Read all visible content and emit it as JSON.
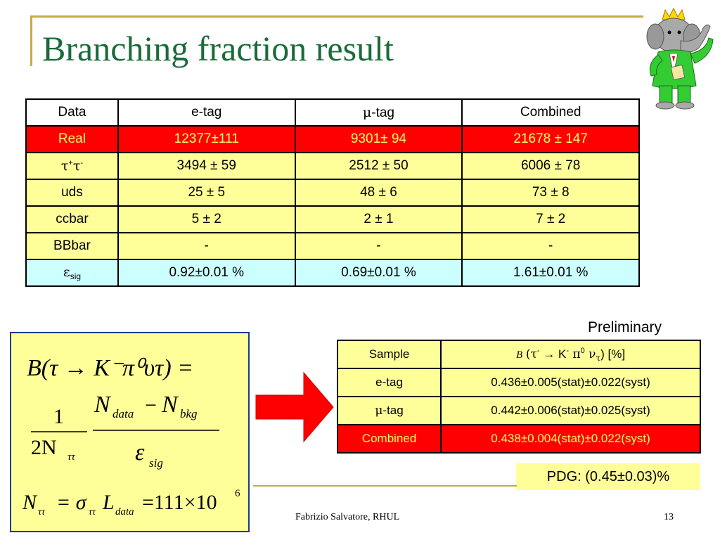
{
  "slide": {
    "title": "Branching fraction result",
    "footer": "Fabrizio Salvatore, RHUL",
    "page_number": "13"
  },
  "main_table": {
    "headers": [
      "Data",
      "e-tag",
      "-tag",
      "Combined"
    ],
    "header_mu_symbol": "μ",
    "real": {
      "label": "Real",
      "values": [
        "12377±111",
        "9301± 94",
        "21678 ± 147"
      ]
    },
    "tautau": {
      "symbol": "τ",
      "plus": "+",
      "minus": "-",
      "values": [
        "3494 ± 59",
        "2512 ± 50",
        "6006 ± 78"
      ]
    },
    "uds": {
      "label": "uds",
      "values": [
        "25 ± 5",
        "48 ± 6",
        "73 ± 8"
      ]
    },
    "ccbar": {
      "label": "ccbar",
      "values": [
        "5 ± 2",
        "2 ± 1",
        "7 ± 2"
      ]
    },
    "bbbar": {
      "label": "BBbar",
      "values": [
        "-",
        "-",
        "-"
      ]
    },
    "eff": {
      "symbol": "ε",
      "subscript": "sig",
      "values": [
        "0.92±0.01 %",
        "0.69±0.01 %",
        "1.61±0.01 %"
      ]
    }
  },
  "formula": {
    "line1_lhs": "B(τ → K⁻π⁰υτ) =",
    "one": "1",
    "two_n_tautau": "2N",
    "tautau_sub": "ττ",
    "n_data": "N",
    "data_sub": "data",
    "minus": "−",
    "n_bkg": "N",
    "bkg_sub": "bkg",
    "eps": "ε",
    "sig_sub": "sig",
    "line3": "N",
    "line3_rest": "= σ",
    "lumi": "L",
    "value": "=111×10",
    "exp": "6"
  },
  "preliminary": "Preliminary",
  "sample_table": {
    "header_sample": "Sample",
    "header_b": "B",
    "header_tau": "(τ",
    "header_rest": " → K",
    "header_pi": " π",
    "header_nu": " ν",
    "header_close": ") [%]",
    "rows": [
      {
        "label": "e-tag",
        "value": "0.436±0.005(stat)±0.022(syst)"
      },
      {
        "label": "-tag",
        "mu": "μ",
        "value": "0.442±0.006(stat)±0.025(syst)"
      },
      {
        "label": "Combined",
        "value": "0.438±0.004(stat)±0.022(syst)"
      }
    ]
  },
  "pdg": "PDG: (0.45±0.03)%",
  "colors": {
    "title": "#1b6b3a",
    "yellow": "#ffff99",
    "red": "#ff0000",
    "cyan": "#ccffff",
    "gold": "#c9a94a"
  },
  "icons": [
    "babar-elephant-mascot",
    "right-arrow-icon"
  ]
}
